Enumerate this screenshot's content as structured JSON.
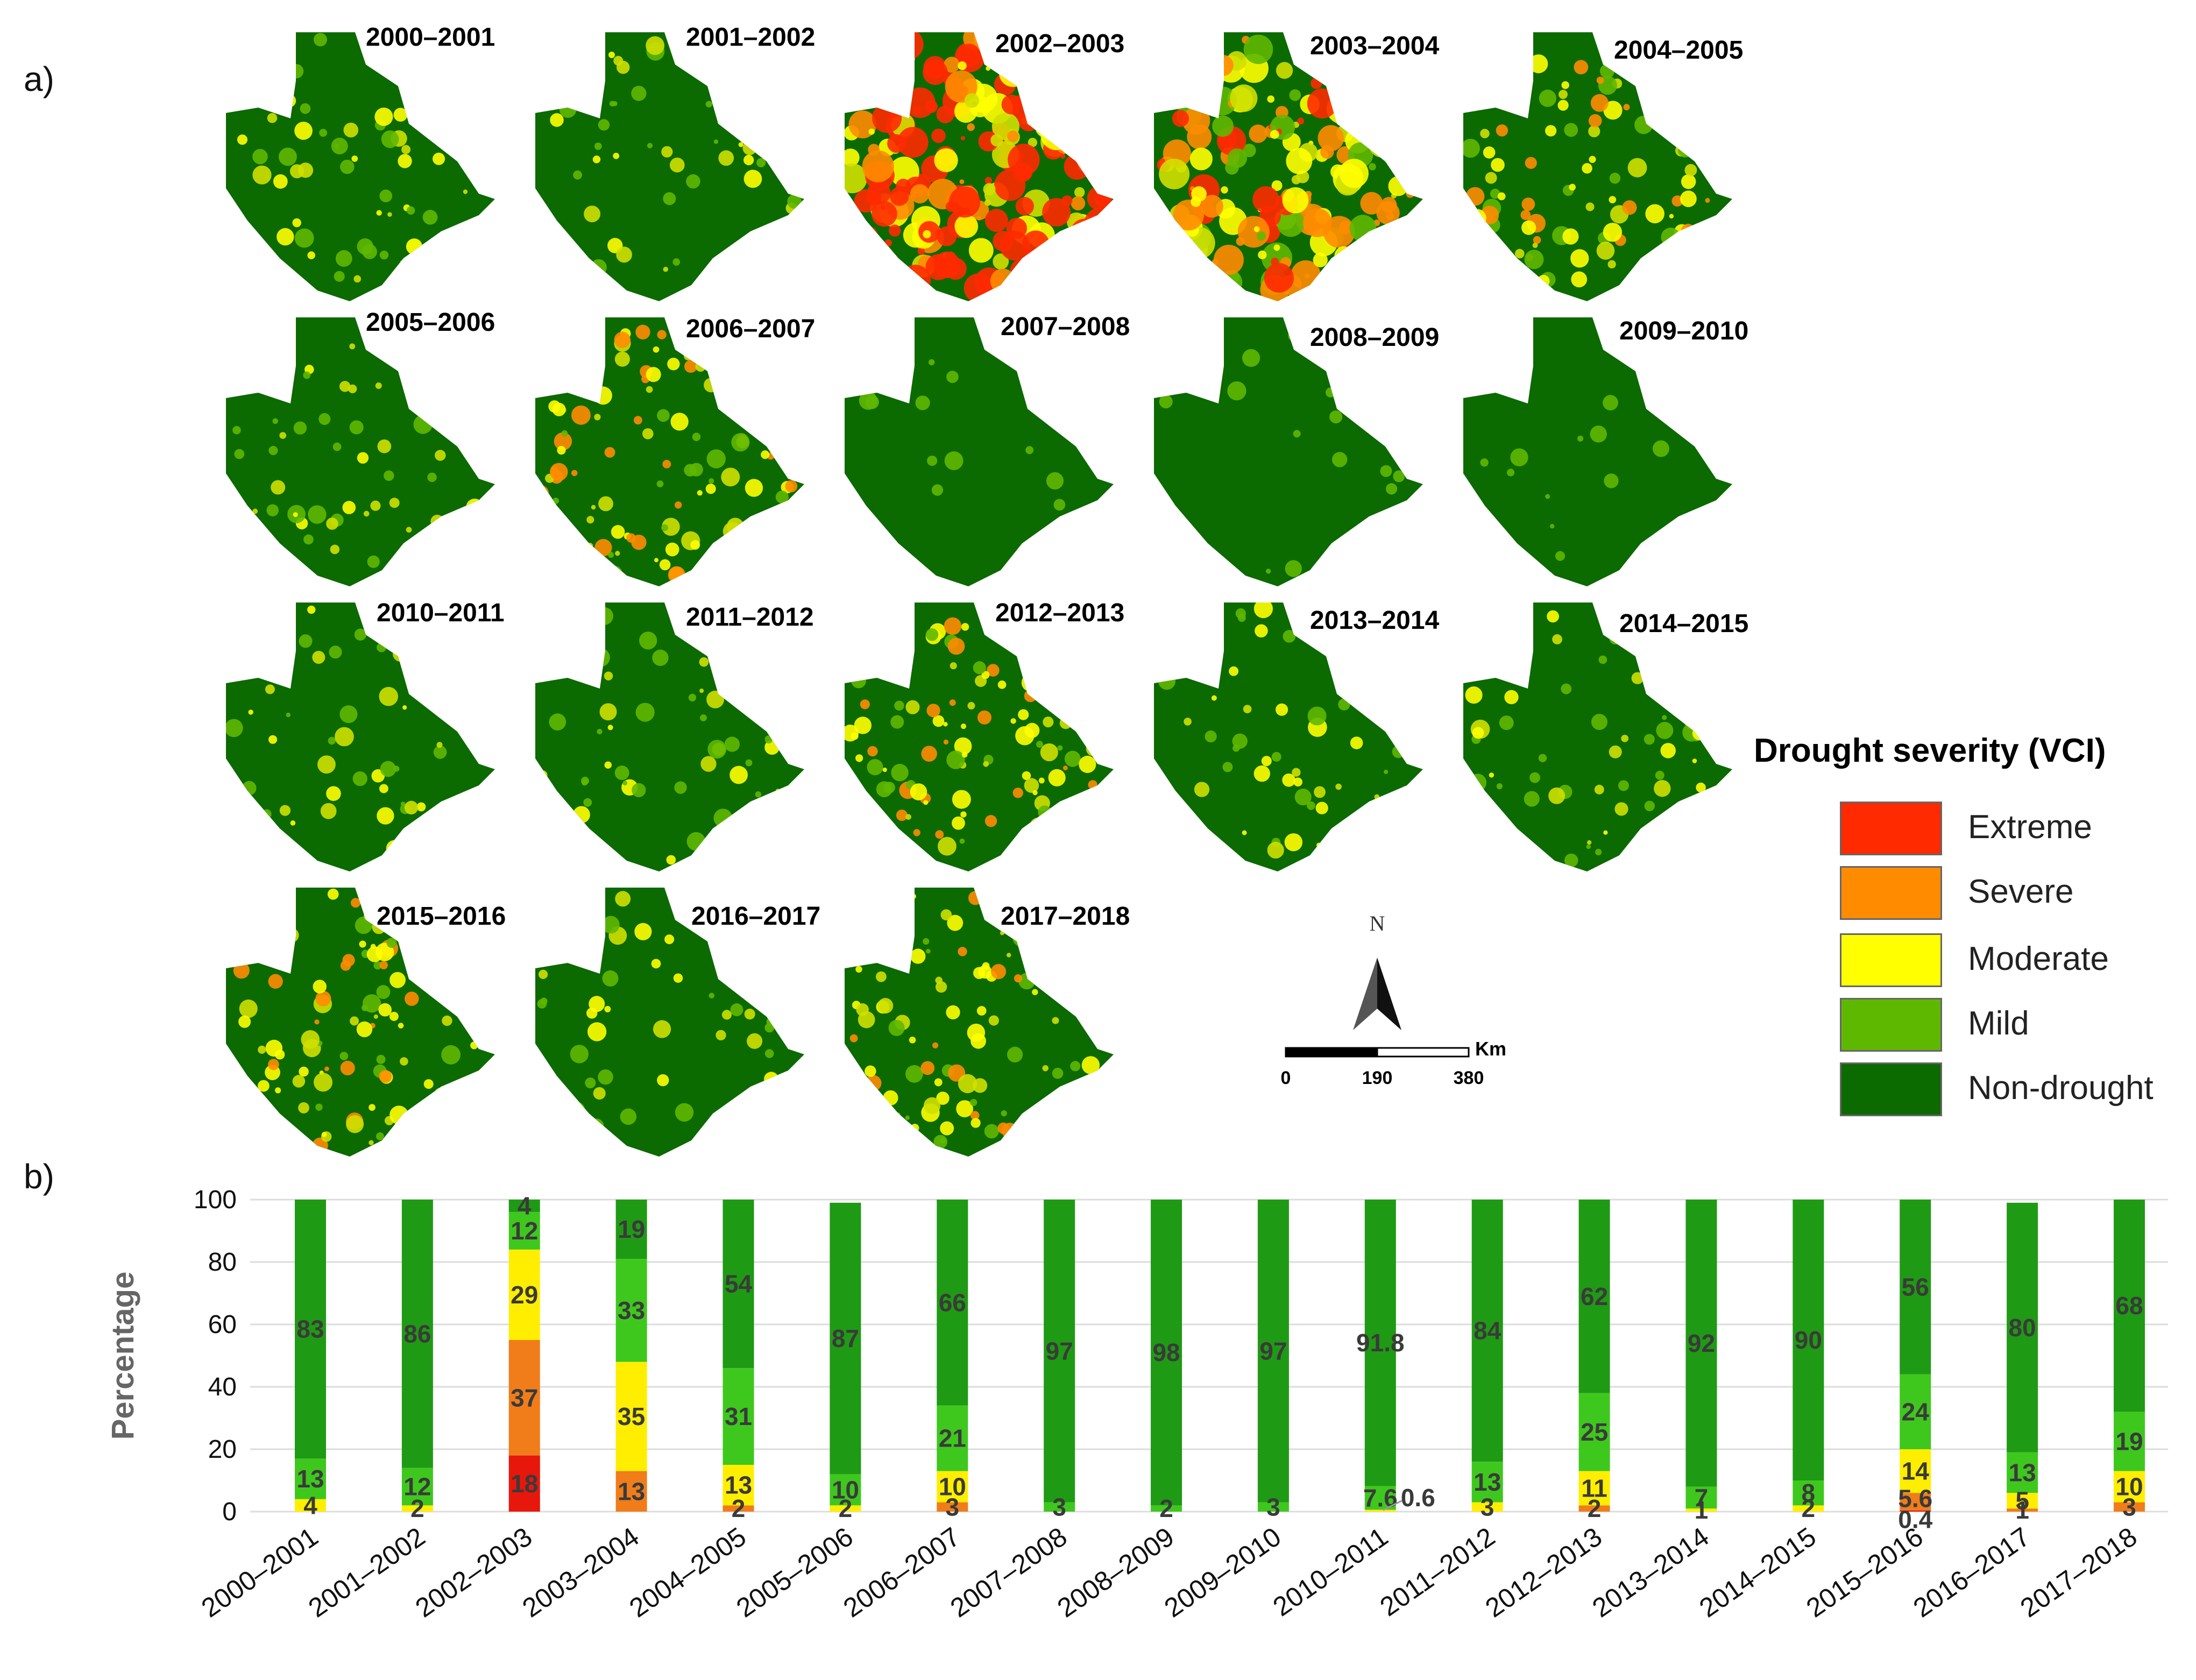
{
  "panel_a_label": "a)",
  "panel_b_label": "b)",
  "maps": [
    {
      "title": "2000–2001",
      "condition": "low"
    },
    {
      "title": "2001–2002",
      "condition": "low"
    },
    {
      "title": "2002–2003",
      "condition": "extreme"
    },
    {
      "title": "2003–2004",
      "condition": "high"
    },
    {
      "title": "2004–2005",
      "condition": "medium"
    },
    {
      "title": "2005–2006",
      "condition": "low"
    },
    {
      "title": "2006–2007",
      "condition": "medium"
    },
    {
      "title": "2007–2008",
      "condition": "very-low"
    },
    {
      "title": "2008–2009",
      "condition": "very-low"
    },
    {
      "title": "2009–2010",
      "condition": "very-low"
    },
    {
      "title": "2010–2011",
      "condition": "low"
    },
    {
      "title": "2011–2012",
      "condition": "low"
    },
    {
      "title": "2012–2013",
      "condition": "medium"
    },
    {
      "title": "2013–2014",
      "condition": "low"
    },
    {
      "title": "2014–2015",
      "condition": "low"
    },
    {
      "title": "2015–2016",
      "condition": "medium"
    },
    {
      "title": "2016–2017",
      "condition": "low"
    },
    {
      "title": "2017–2018",
      "condition": "medium"
    }
  ],
  "legend": {
    "title": "Drought severity (VCI)",
    "items": [
      {
        "label": "Extreme",
        "color": "#ff2a00"
      },
      {
        "label": "Severe",
        "color": "#ff8c00"
      },
      {
        "label": "Moderate",
        "color": "#ffff00"
      },
      {
        "label": "Mild",
        "color": "#5fb800"
      },
      {
        "label": "Non-drought",
        "color": "#0b6a00"
      }
    ]
  },
  "north_label": "N",
  "scale": {
    "unit": "Km",
    "ticks": [
      "0",
      "190",
      "380"
    ]
  },
  "chart_data": {
    "type": "bar",
    "stacked": true,
    "title": "",
    "xlabel": "",
    "ylabel": "Percentage",
    "ylim": [
      0,
      100
    ],
    "yticks": [
      0,
      20,
      40,
      60,
      80,
      100
    ],
    "categories": [
      "2000–2001",
      "2001–2002",
      "2002–2003",
      "2003–2004",
      "2004–2005",
      "2005–2006",
      "2006–2007",
      "2007–2008",
      "2008–2009",
      "2009–2010",
      "2010–2011",
      "2011–2012",
      "2012–2013",
      "2013–2014",
      "2014–2015",
      "2015–2016",
      "2016–2017",
      "2017–2018"
    ],
    "series": [
      {
        "name": "Extreme",
        "color": "#e8170b",
        "values": [
          0,
          0,
          18,
          0,
          0,
          0,
          0,
          0,
          0,
          0,
          0,
          0,
          0,
          0,
          0,
          0.4,
          0,
          0
        ]
      },
      {
        "name": "Severe",
        "color": "#f07d1a",
        "values": [
          0,
          0,
          37,
          13,
          2,
          0,
          3,
          0,
          0,
          0,
          0,
          0,
          2,
          0,
          0,
          5.6,
          1,
          3
        ]
      },
      {
        "name": "Moderate",
        "color": "#ffee00",
        "values": [
          4,
          2,
          29,
          35,
          13,
          2,
          10,
          0,
          0,
          0,
          0.6,
          3,
          11,
          1,
          2,
          14,
          5,
          10
        ]
      },
      {
        "name": "Mild",
        "color": "#3ec81e",
        "values": [
          13,
          12,
          12,
          33,
          31,
          10,
          21,
          3,
          2,
          3,
          7.6,
          13,
          25,
          7,
          8,
          24,
          13,
          19
        ]
      },
      {
        "name": "Non-drought",
        "color": "#1f9a14",
        "values": [
          83,
          86,
          4,
          19,
          54,
          87,
          66,
          97,
          98,
          97,
          91.8,
          84,
          62,
          92,
          90,
          56,
          80,
          68
        ]
      }
    ],
    "data_labels": [
      [
        "4",
        "13",
        "83"
      ],
      [
        "2",
        "12",
        "86"
      ],
      [
        "18",
        "37",
        "29",
        "12",
        "4"
      ],
      [
        "13",
        "35",
        "33",
        "19"
      ],
      [
        "2",
        "13",
        "31",
        "54"
      ],
      [
        "2",
        "10",
        "87"
      ],
      [
        "3",
        "10",
        "21",
        "66"
      ],
      [
        "3",
        "97"
      ],
      [
        "2",
        "98"
      ],
      [
        "3",
        "97"
      ],
      [
        "0.6",
        "7.6",
        "91.8"
      ],
      [
        "3",
        "13",
        "84"
      ],
      [
        "2",
        "11",
        "25",
        "62"
      ],
      [
        "1",
        "7",
        "92"
      ],
      [
        "2",
        "8",
        "90"
      ],
      [
        "0.4",
        "5.6",
        "14",
        "24",
        "56"
      ],
      [
        "1",
        "5",
        "13",
        "80"
      ],
      [
        "3",
        "10",
        "19",
        "68"
      ]
    ]
  }
}
